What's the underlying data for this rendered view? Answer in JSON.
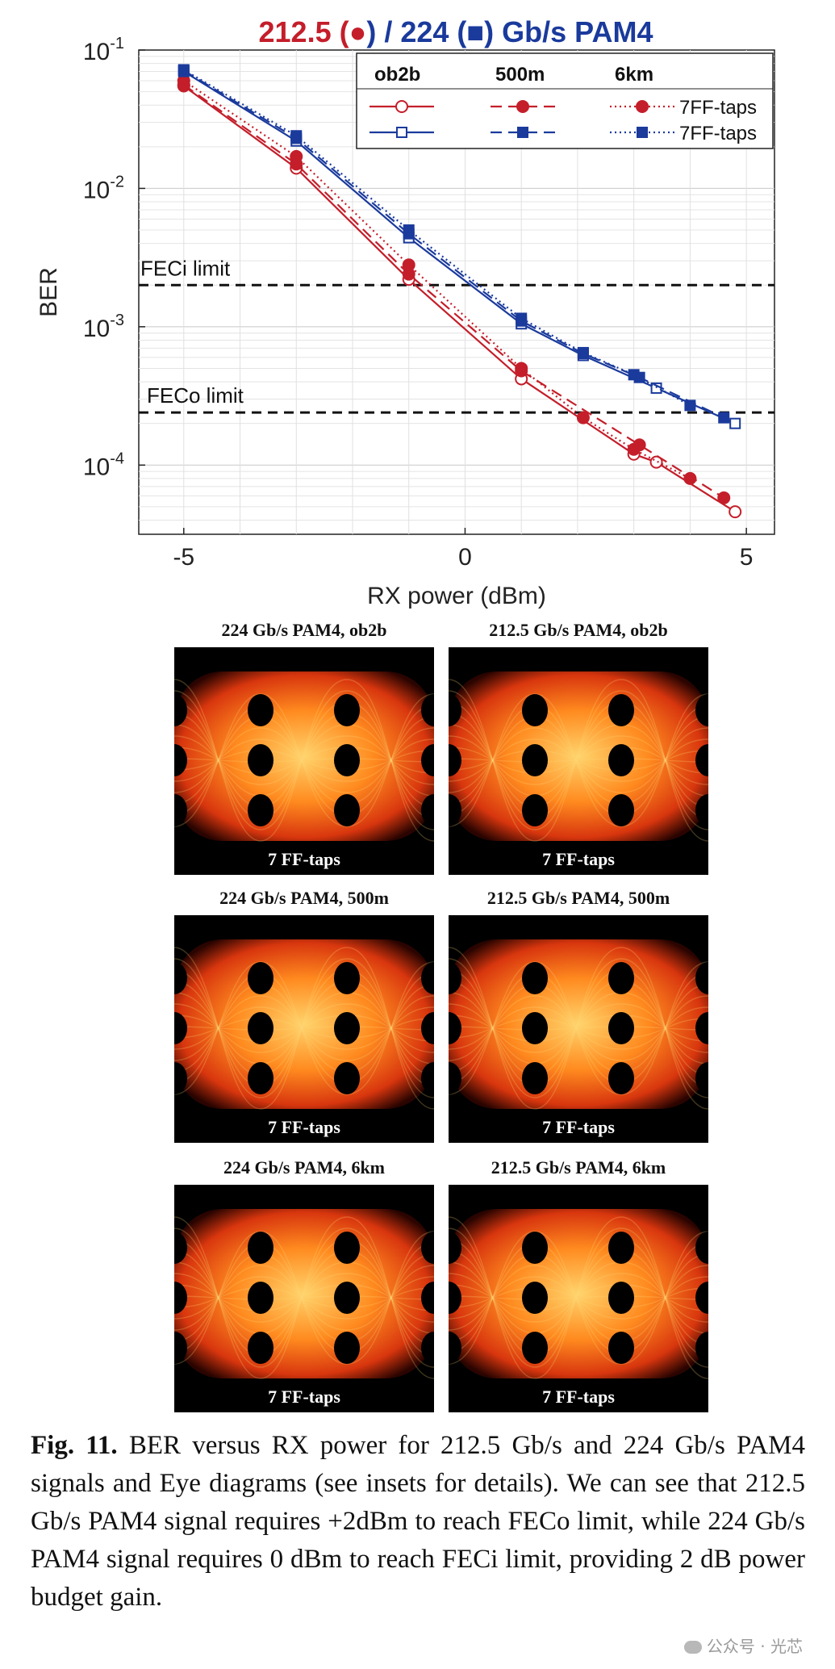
{
  "chart_data": {
    "type": "line",
    "title": {
      "part1": "212.5 (",
      "marker1": "●",
      "part2": ") / 224 (",
      "marker2": "■",
      "part3": ") Gb/s PAM4",
      "color_212": "#c41e2a",
      "color_224": "#1a3a9c"
    },
    "xlabel": "RX power (dBm)",
    "ylabel": "BER",
    "y_scale": "log",
    "xlim": [
      -5.8,
      5.5
    ],
    "ylim_exp": [
      -4.5,
      -1
    ],
    "x_ticks": [
      -5,
      0,
      5
    ],
    "y_ticks": [
      {
        "exp": -1,
        "base": "10",
        "sup": "-1"
      },
      {
        "exp": -2,
        "base": "10",
        "sup": "-2"
      },
      {
        "exp": -3,
        "base": "10",
        "sup": "-3"
      },
      {
        "exp": -4,
        "base": "10",
        "sup": "-4"
      }
    ],
    "grid": true,
    "legend": {
      "position": "top-right",
      "headers": [
        "ob2b",
        "500m",
        "6km"
      ],
      "row_labels": [
        "7FF-taps",
        "7FF-taps"
      ]
    },
    "limits": [
      {
        "label": "FECi limit",
        "value": 0.002
      },
      {
        "label": "FECo limit",
        "value": 0.00024
      }
    ],
    "series": [
      {
        "rate": "212.5",
        "fiber": "ob2b",
        "color": "#c41e2a",
        "marker": "circle-open",
        "line": "solid",
        "x": [
          -5,
          -3,
          -1,
          1,
          3,
          3.4,
          4.8
        ],
        "y": [
          0.055,
          0.014,
          0.0022,
          0.00042,
          0.00012,
          0.000105,
          4.6e-05
        ]
      },
      {
        "rate": "212.5",
        "fiber": "500m",
        "color": "#c41e2a",
        "marker": "circle-filled",
        "line": "dashed",
        "x": [
          -5,
          -3,
          -1,
          1,
          3.1,
          4.6
        ],
        "y": [
          0.056,
          0.015,
          0.0024,
          0.00048,
          0.00014,
          5.8e-05
        ]
      },
      {
        "rate": "212.5",
        "fiber": "6km",
        "color": "#c41e2a",
        "marker": "circle-filled",
        "line": "dotted",
        "x": [
          -5,
          -3,
          -1,
          1,
          2.1,
          3,
          4
        ],
        "y": [
          0.06,
          0.017,
          0.0028,
          0.0005,
          0.00022,
          0.00013,
          8e-05
        ]
      },
      {
        "rate": "224",
        "fiber": "ob2b",
        "color": "#1a3a9c",
        "marker": "square-open",
        "line": "solid",
        "x": [
          -5,
          -3,
          -1,
          1,
          2.1,
          3.4,
          4.8
        ],
        "y": [
          0.07,
          0.022,
          0.0044,
          0.00105,
          0.00062,
          0.00036,
          0.0002
        ]
      },
      {
        "rate": "224",
        "fiber": "500m",
        "color": "#1a3a9c",
        "marker": "square-filled",
        "line": "dashed",
        "x": [
          -5,
          -3,
          -1,
          1,
          2.1,
          3.1,
          4.6
        ],
        "y": [
          0.071,
          0.023,
          0.0047,
          0.0011,
          0.00064,
          0.00043,
          0.00022
        ]
      },
      {
        "rate": "224",
        "fiber": "6km",
        "color": "#1a3a9c",
        "marker": "square-filled",
        "line": "dotted",
        "x": [
          -5,
          -3,
          -1,
          1,
          2.1,
          3,
          4
        ],
        "y": [
          0.072,
          0.024,
          0.005,
          0.00115,
          0.00065,
          0.00045,
          0.00027
        ]
      }
    ]
  },
  "eye_diagrams": [
    {
      "title": "224 Gb/s PAM4, ob2b",
      "label": "7 FF-taps"
    },
    {
      "title": "212.5 Gb/s PAM4, ob2b",
      "label": "7 FF-taps"
    },
    {
      "title": "224 Gb/s PAM4, 500m",
      "label": "7 FF-taps"
    },
    {
      "title": "212.5 Gb/s PAM4, 500m",
      "label": "7 FF-taps"
    },
    {
      "title": "224 Gb/s PAM4, 6km",
      "label": "7 FF-taps"
    },
    {
      "title": "212.5 Gb/s PAM4, 6km",
      "label": "7 FF-taps"
    }
  ],
  "caption": {
    "fig_label": "Fig. 11.",
    "text": " BER versus RX power for 212.5 Gb/s and 224 Gb/s PAM4 signals and Eye diagrams (see insets for details). We can see that 212.5 Gb/s PAM4 signal requires +2dBm to reach FECo limit, while 224 Gb/s PAM4 signal requires 0 dBm to reach FECi limit, providing 2 dB power budget gain."
  },
  "watermark": {
    "text": "公众号 · 光芯"
  }
}
